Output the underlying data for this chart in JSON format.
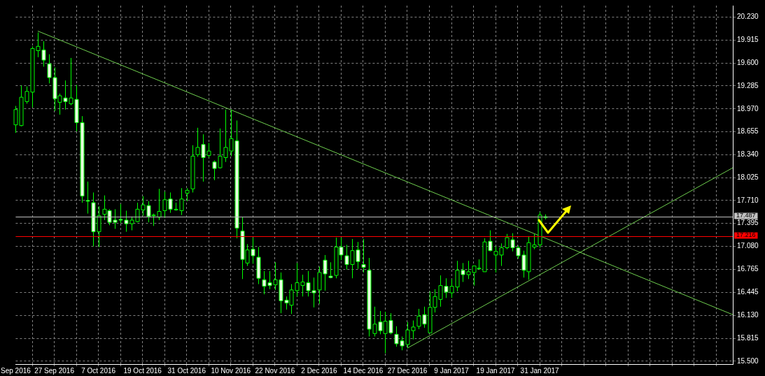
{
  "chart_data": {
    "type": "candlestick",
    "categories": [
      "Sep 2016",
      null,
      null,
      null,
      null,
      null,
      null,
      "27 Sep 2016",
      null,
      null,
      null,
      null,
      null,
      null,
      null,
      "7 Oct 2016",
      null,
      null,
      null,
      null,
      null,
      null,
      null,
      "19 Oct 2016",
      null,
      null,
      null,
      null,
      null,
      null,
      null,
      "31 Oct 2016",
      null,
      null,
      null,
      null,
      null,
      null,
      null,
      "10 Nov 2016",
      null,
      null,
      null,
      null,
      null,
      null,
      null,
      "22 Nov 2016",
      null,
      null,
      null,
      null,
      null,
      null,
      null,
      "2 Dec 2016",
      null,
      null,
      null,
      null,
      null,
      null,
      null,
      "14 Dec 2016",
      null,
      null,
      null,
      null,
      null,
      null,
      null,
      "27 Dec 2016",
      null,
      null,
      null,
      null,
      null,
      null,
      null,
      "9 Jan 2017",
      null,
      null,
      null,
      null,
      null,
      null,
      null,
      "19 Jan 2017",
      null,
      null,
      null,
      null,
      null,
      null,
      null,
      "31 Jan 2017",
      null,
      null,
      null,
      null,
      null,
      null,
      null,
      null,
      null,
      null,
      null,
      null,
      null,
      null,
      null,
      null,
      null,
      null,
      null,
      null,
      null,
      null,
      null,
      null,
      null,
      null,
      null,
      null,
      null,
      null,
      null,
      null,
      null,
      null,
      null
    ],
    "ohlc": [
      [
        18.75,
        19.01,
        18.64,
        18.96
      ],
      [
        18.74,
        19.29,
        18.73,
        19.13
      ],
      [
        19.07,
        19.28,
        19.04,
        19.21
      ],
      [
        19.2,
        19.83,
        18.99,
        19.8
      ],
      [
        19.77,
        20.02,
        19.68,
        19.83
      ],
      [
        19.78,
        19.9,
        19.55,
        19.64
      ],
      [
        19.59,
        19.72,
        19.32,
        19.4
      ],
      [
        19.4,
        19.54,
        18.94,
        19.11
      ],
      [
        19.06,
        19.18,
        18.89,
        19.15
      ],
      [
        19.12,
        19.36,
        18.96,
        19.07
      ],
      [
        19.04,
        19.67,
        19.02,
        19.12
      ],
      [
        19.1,
        19.3,
        18.66,
        18.78
      ],
      [
        18.78,
        18.87,
        17.68,
        17.77
      ],
      [
        17.71,
        17.97,
        17.53,
        17.7
      ],
      [
        17.68,
        17.82,
        17.08,
        17.28
      ],
      [
        17.28,
        17.63,
        17.07,
        17.5
      ],
      [
        17.52,
        17.78,
        17.44,
        17.59
      ],
      [
        17.57,
        17.59,
        17.37,
        17.41
      ],
      [
        17.44,
        17.59,
        17.32,
        17.41
      ],
      [
        17.45,
        17.66,
        17.4,
        17.44
      ],
      [
        17.44,
        17.57,
        17.28,
        17.39
      ],
      [
        17.39,
        17.49,
        17.3,
        17.44
      ],
      [
        17.42,
        17.68,
        17.41,
        17.59
      ],
      [
        17.58,
        17.77,
        17.5,
        17.65
      ],
      [
        17.64,
        17.7,
        17.41,
        17.49
      ],
      [
        17.51,
        17.53,
        17.36,
        17.51
      ],
      [
        17.48,
        17.87,
        17.44,
        17.56
      ],
      [
        17.57,
        17.83,
        17.47,
        17.72
      ],
      [
        17.73,
        17.82,
        17.54,
        17.59
      ],
      [
        17.59,
        17.68,
        17.57,
        17.59
      ],
      [
        17.57,
        17.88,
        17.51,
        17.73
      ],
      [
        17.81,
        17.88,
        17.7,
        17.85
      ],
      [
        17.87,
        18.47,
        17.82,
        18.32
      ],
      [
        18.34,
        18.71,
        18.31,
        18.44
      ],
      [
        18.48,
        18.62,
        17.97,
        18.3
      ],
      [
        18.33,
        18.5,
        18.3,
        18.39
      ],
      [
        18.24,
        18.26,
        17.99,
        18.15
      ],
      [
        18.16,
        18.7,
        18.15,
        18.32
      ],
      [
        18.3,
        18.96,
        18.24,
        18.44
      ],
      [
        18.39,
        18.96,
        18.32,
        18.56
      ],
      [
        18.53,
        18.81,
        17.19,
        17.33
      ],
      [
        17.29,
        17.48,
        16.63,
        16.9
      ],
      [
        16.85,
        17.11,
        16.81,
        17.03
      ],
      [
        17.04,
        17.2,
        16.84,
        16.95
      ],
      [
        16.93,
        17.07,
        16.56,
        16.64
      ],
      [
        16.62,
        16.74,
        16.42,
        16.53
      ],
      [
        16.58,
        16.74,
        16.49,
        16.54
      ],
      [
        16.55,
        16.86,
        16.48,
        16.62
      ],
      [
        16.62,
        16.72,
        16.16,
        16.33
      ],
      [
        16.34,
        16.39,
        16.21,
        16.3
      ],
      [
        16.27,
        16.56,
        16.15,
        16.48
      ],
      [
        16.47,
        16.85,
        16.39,
        16.58
      ],
      [
        16.54,
        16.69,
        16.39,
        16.59
      ],
      [
        16.58,
        16.74,
        16.39,
        16.47
      ],
      [
        16.47,
        16.65,
        16.24,
        16.44
      ],
      [
        16.48,
        16.8,
        16.29,
        16.72
      ],
      [
        16.89,
        16.96,
        16.47,
        16.7
      ],
      [
        16.67,
        16.86,
        16.64,
        16.65
      ],
      [
        16.68,
        17.2,
        16.64,
        17.07
      ],
      [
        17.07,
        17.2,
        16.89,
        16.96
      ],
      [
        16.95,
        17.1,
        16.76,
        16.83
      ],
      [
        16.83,
        17.18,
        16.64,
        17.02
      ],
      [
        17.03,
        17.14,
        16.77,
        16.87
      ],
      [
        16.83,
        17.18,
        16.72,
        16.79
      ],
      [
        16.75,
        16.92,
        15.84,
        15.94
      ],
      [
        15.88,
        16.25,
        15.84,
        16.01
      ],
      [
        16.04,
        16.19,
        15.87,
        15.92
      ],
      [
        15.88,
        16.18,
        15.61,
        16.05
      ],
      [
        16.06,
        16.16,
        15.87,
        15.89
      ],
      [
        15.87,
        15.98,
        15.7,
        15.74
      ],
      [
        15.78,
        15.84,
        15.65,
        15.71
      ],
      [
        15.73,
        16.04,
        15.68,
        15.93
      ],
      [
        15.92,
        16.06,
        15.8,
        15.97
      ],
      [
        15.98,
        16.22,
        15.94,
        16.12
      ],
      [
        16.14,
        16.25,
        15.96,
        16.01
      ],
      [
        15.89,
        16.46,
        15.89,
        16.24
      ],
      [
        16.24,
        16.49,
        16.17,
        16.39
      ],
      [
        16.35,
        16.68,
        16.25,
        16.54
      ],
      [
        16.53,
        16.64,
        16.37,
        16.45
      ],
      [
        16.44,
        16.63,
        16.37,
        16.53
      ],
      [
        16.52,
        16.88,
        16.46,
        16.75
      ],
      [
        16.75,
        16.85,
        16.59,
        16.69
      ],
      [
        16.69,
        16.88,
        16.63,
        16.73
      ],
      [
        16.72,
        16.81,
        16.54,
        16.81
      ],
      [
        16.78,
        16.9,
        16.76,
        16.78
      ],
      [
        16.73,
        17.19,
        16.73,
        17.14
      ],
      [
        17.15,
        17.3,
        17.01,
        17.02
      ],
      [
        16.96,
        17.08,
        16.72,
        17.01
      ],
      [
        16.96,
        17.12,
        16.81,
        17.06
      ],
      [
        17.06,
        17.25,
        17.04,
        17.2
      ],
      [
        17.17,
        17.26,
        17.01,
        17.06
      ],
      [
        17.06,
        17.09,
        16.91,
        16.95
      ],
      [
        16.96,
        17.02,
        16.65,
        16.75
      ],
      [
        16.73,
        17.22,
        16.62,
        17.13
      ],
      [
        17.07,
        17.25,
        17.04,
        17.1
      ],
      [
        17.1,
        17.55,
        17.06,
        17.51
      ],
      [
        17.475,
        17.52,
        17.45,
        17.487
      ],
      null,
      null,
      null,
      null,
      null,
      null,
      null,
      null,
      null,
      null,
      null,
      null,
      null,
      null,
      null,
      null,
      null,
      null,
      null,
      null,
      null,
      null,
      null,
      null,
      null,
      null,
      null,
      null,
      null,
      null,
      null,
      null,
      null,
      null
    ],
    "series": [
      {
        "type": "line",
        "color": "#6fcf4f",
        "values": [
          null,
          null,
          null,
          null,
          20.04,
          null,
          null,
          null,
          null,
          null,
          null,
          null,
          null,
          null,
          null,
          null,
          null,
          null,
          null,
          null,
          null,
          null,
          null,
          null,
          null,
          null,
          null,
          null,
          null,
          null,
          null,
          null,
          null,
          null,
          null,
          null,
          null,
          null,
          null,
          null,
          null,
          null,
          null,
          null,
          null,
          null,
          null,
          null,
          null,
          null,
          null,
          null,
          null,
          null,
          null,
          null,
          null,
          null,
          null,
          null,
          null,
          null,
          null,
          null,
          null,
          null,
          null,
          null,
          null,
          null,
          null,
          null,
          null,
          null,
          null,
          null,
          null,
          null,
          null,
          null,
          null,
          null,
          null,
          null,
          null,
          null,
          null,
          null,
          null,
          null,
          null,
          null,
          null,
          null,
          null,
          null,
          null,
          null,
          null,
          null,
          null,
          null,
          null,
          null,
          null,
          null,
          null,
          null,
          null,
          null,
          null,
          null,
          null,
          null,
          null,
          null,
          null,
          null,
          null,
          null,
          null,
          null,
          null,
          null,
          null,
          null,
          null,
          null,
          null,
          null,
          16.14
        ]
      },
      {
        "type": "line",
        "color": "#6fcf4f",
        "values": [
          null,
          null,
          null,
          null,
          null,
          null,
          null,
          null,
          null,
          null,
          null,
          null,
          null,
          null,
          null,
          null,
          null,
          null,
          null,
          null,
          null,
          null,
          null,
          null,
          null,
          null,
          null,
          null,
          null,
          null,
          null,
          null,
          null,
          null,
          null,
          null,
          null,
          null,
          null,
          null,
          null,
          null,
          null,
          null,
          null,
          null,
          null,
          null,
          null,
          null,
          null,
          null,
          null,
          null,
          null,
          null,
          null,
          null,
          null,
          null,
          null,
          null,
          null,
          null,
          null,
          null,
          null,
          null,
          null,
          null,
          null,
          15.68,
          null,
          null,
          null,
          null,
          null,
          null,
          null,
          null,
          null,
          null,
          null,
          null,
          null,
          null,
          null,
          null,
          null,
          null,
          null,
          null,
          null,
          null,
          null,
          null,
          null,
          null,
          null,
          null,
          null,
          null,
          null,
          null,
          null,
          null,
          null,
          null,
          null,
          null,
          null,
          null,
          null,
          null,
          null,
          null,
          null,
          null,
          null,
          null,
          null,
          null,
          null,
          null,
          null,
          null,
          null,
          null,
          null,
          null,
          18.16
        ]
      }
    ],
    "ylim": [
      15.46,
      20.39
    ],
    "yticks": [
      {
        "value": 20.23,
        "label": "20.230"
      },
      {
        "value": 19.915,
        "label": "19.915"
      },
      {
        "value": 19.6,
        "label": "19.600"
      },
      {
        "value": 19.285,
        "label": "19.285"
      },
      {
        "value": 18.97,
        "label": "18.970"
      },
      {
        "value": 18.655,
        "label": "18.655"
      },
      {
        "value": 18.34,
        "label": "18.340"
      },
      {
        "value": 18.025,
        "label": "18.025"
      },
      {
        "value": 17.71,
        "label": "17.710"
      },
      {
        "value": 17.395,
        "label": "17.395"
      },
      {
        "value": 17.08,
        "label": "17.080"
      },
      {
        "value": 16.765,
        "label": "16.765"
      },
      {
        "value": 16.445,
        "label": "16.445"
      },
      {
        "value": 16.13,
        "label": "16.130"
      },
      {
        "value": 15.815,
        "label": "15.815"
      },
      {
        "value": 15.5,
        "label": "15.500"
      }
    ],
    "ref_lines": [
      {
        "axis": "y",
        "value": 17.487,
        "label": "17.487",
        "color": "#c0c0c0"
      },
      {
        "axis": "y",
        "value": 17.216,
        "label": "17.216",
        "color": "#ff0000"
      }
    ],
    "grid": true
  }
}
